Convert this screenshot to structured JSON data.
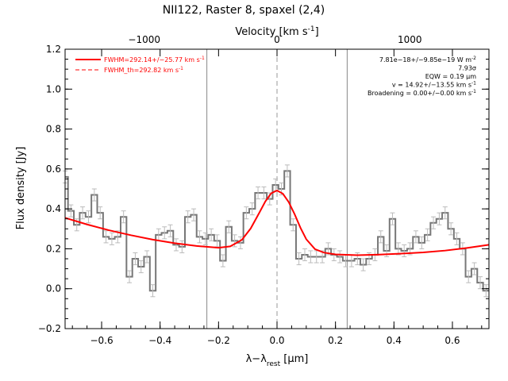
{
  "chart_data": {
    "type": "line",
    "title": "NII122, Raster 8, spaxel (2,4)",
    "xlabel": "λ−λ",
    "xlabel_sub": "rest",
    "xlabel_unit": " [μm]",
    "ylabel": "Flux density [Jy]",
    "top_axis_label": "Velocity [km s",
    "top_axis_label_sup": "-1",
    "top_axis_label_end": "]",
    "xlim": [
      -0.725,
      0.725
    ],
    "ylim": [
      -0.2,
      1.2
    ],
    "x_ticks": [
      -0.6,
      -0.4,
      -0.2,
      0.0,
      0.2,
      0.4,
      0.6
    ],
    "x_tick_labels": [
      "−0.6",
      "−0.4",
      "−0.2",
      "0.0",
      "0.2",
      "0.4",
      "0.6"
    ],
    "y_ticks": [
      -0.2,
      0.0,
      0.2,
      0.4,
      0.6,
      0.8,
      1.0,
      1.2
    ],
    "y_tick_labels": [
      "−0.2",
      "0.0",
      "0.2",
      "0.4",
      "0.6",
      "0.8",
      "1.0",
      "1.2"
    ],
    "top_ticks_x": [
      -0.4543,
      0.0,
      0.4543
    ],
    "top_tick_labels": [
      "−1000",
      "0",
      "1000"
    ],
    "vlines_solid_x": [
      -0.24,
      0.24
    ],
    "vline_dashed_x": 0.0,
    "legend": [
      {
        "label": "FWHM=292.14+/−25.77 km s",
        "sup": "-1",
        "style": "solid",
        "color": "#ff0000"
      },
      {
        "label": "FWHM_th=292.82 km s",
        "sup": "-1",
        "style": "dashed",
        "color": "#ff0000"
      }
    ],
    "annotations": [
      {
        "text": "7.81e−18+/−9.85e−19 W m",
        "sup": "-2"
      },
      {
        "text": "7.93σ",
        "sup": ""
      },
      {
        "text": "EQW = 0.19 μm",
        "sup": ""
      },
      {
        "text": "v = 14.92+/−13.55 km s",
        "sup": "-1"
      },
      {
        "text": "Broadening = 0.00+/−0.00 km s",
        "sup": "-1"
      }
    ],
    "series": [
      {
        "style": "histogram",
        "color": "#777777",
        "x": [
          -0.725,
          -0.705,
          -0.685,
          -0.665,
          -0.645,
          -0.625,
          -0.605,
          -0.585,
          -0.565,
          -0.545,
          -0.525,
          -0.505,
          -0.485,
          -0.465,
          -0.445,
          -0.425,
          -0.405,
          -0.385,
          -0.365,
          -0.345,
          -0.325,
          -0.305,
          -0.285,
          -0.265,
          -0.245,
          -0.225,
          -0.205,
          -0.185,
          -0.165,
          -0.145,
          -0.125,
          -0.105,
          -0.085,
          -0.065,
          -0.045,
          -0.025,
          -0.005,
          0.015,
          0.035,
          0.055,
          0.075,
          0.095,
          0.115,
          0.135,
          0.155,
          0.175,
          0.195,
          0.215,
          0.235,
          0.255,
          0.275,
          0.295,
          0.315,
          0.335,
          0.355,
          0.375,
          0.395,
          0.415,
          0.435,
          0.455,
          0.475,
          0.495,
          0.515,
          0.535,
          0.555,
          0.575,
          0.595,
          0.615,
          0.635,
          0.655,
          0.675,
          0.695,
          0.715
        ],
        "y": [
          0.56,
          0.39,
          0.32,
          0.38,
          0.36,
          0.47,
          0.38,
          0.26,
          0.25,
          0.26,
          0.36,
          0.06,
          0.15,
          0.11,
          0.16,
          -0.01,
          0.27,
          0.28,
          0.29,
          0.22,
          0.21,
          0.36,
          0.37,
          0.26,
          0.25,
          0.27,
          0.24,
          0.14,
          0.31,
          0.24,
          0.23,
          0.38,
          0.4,
          0.48,
          0.48,
          0.45,
          0.52,
          0.5,
          0.59,
          0.32,
          0.15,
          0.17,
          0.16,
          0.16,
          0.16,
          0.2,
          0.17,
          0.16,
          0.14,
          0.14,
          0.15,
          0.12,
          0.15,
          0.17,
          0.26,
          0.19,
          0.35,
          0.2,
          0.19,
          0.2,
          0.26,
          0.23,
          0.27,
          0.33,
          0.35,
          0.38,
          0.3,
          0.25,
          0.2,
          0.06,
          0.1,
          0.03,
          -0.01
        ],
        "yerr": 0.03
      },
      {
        "style": "curve",
        "color": "#ff0000",
        "note_fit": "baseline + gaussian",
        "x": [
          -0.725,
          -0.65,
          -0.575,
          -0.5,
          -0.425,
          -0.35,
          -0.275,
          -0.2,
          -0.16,
          -0.12,
          -0.09,
          -0.06,
          -0.04,
          -0.02,
          0.0,
          0.02,
          0.04,
          0.06,
          0.08,
          0.1,
          0.13,
          0.16,
          0.2,
          0.275,
          0.35,
          0.425,
          0.5,
          0.575,
          0.65,
          0.725
        ],
        "y": [
          0.355,
          0.322,
          0.293,
          0.268,
          0.246,
          0.228,
          0.214,
          0.205,
          0.212,
          0.245,
          0.302,
          0.382,
          0.437,
          0.478,
          0.492,
          0.476,
          0.434,
          0.374,
          0.306,
          0.248,
          0.198,
          0.181,
          0.172,
          0.168,
          0.171,
          0.176,
          0.182,
          0.191,
          0.204,
          0.22
        ]
      }
    ]
  }
}
